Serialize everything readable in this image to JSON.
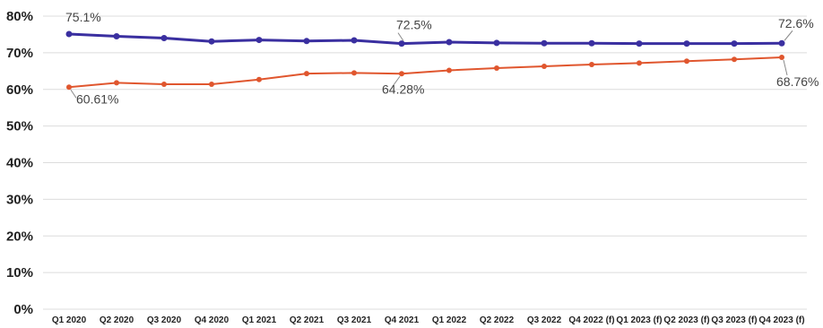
{
  "chart_data": {
    "type": "line",
    "categories": [
      "Q1 2020",
      "Q2 2020",
      "Q3 2020",
      "Q4 2020",
      "Q1 2021",
      "Q2 2021",
      "Q3 2021",
      "Q4 2021",
      "Q1 2022",
      "Q2 2022",
      "Q3 2022",
      "Q4 2022 (f)",
      "Q1 2023 (f)",
      "Q2 2023 (f)",
      "Q3 2023 (f)",
      "Q4 2023 (f)"
    ],
    "yticks": [
      "0%",
      "10%",
      "20%",
      "30%",
      "40%",
      "50%",
      "60%",
      "70%",
      "80%"
    ],
    "ylim": [
      0,
      80
    ],
    "grid": true,
    "series": [
      {
        "color": "#3a2fa0",
        "values": [
          75.1,
          74.5,
          74.0,
          73.1,
          73.5,
          73.2,
          73.4,
          72.5,
          72.9,
          72.7,
          72.6,
          72.6,
          72.5,
          72.5,
          72.5,
          72.6
        ]
      },
      {
        "color": "#e0562e",
        "values": [
          60.61,
          61.8,
          61.4,
          61.4,
          62.7,
          64.3,
          64.5,
          64.28,
          65.2,
          65.8,
          66.3,
          66.8,
          67.2,
          67.7,
          68.2,
          68.76
        ]
      }
    ],
    "annotations": [
      {
        "series": 0,
        "index": 0,
        "text": "75.1%"
      },
      {
        "series": 0,
        "index": 7,
        "text": "72.5%"
      },
      {
        "series": 0,
        "index": 15,
        "text": "72.6%"
      },
      {
        "series": 1,
        "index": 0,
        "text": "60.61%"
      },
      {
        "series": 1,
        "index": 7,
        "text": "64.28%"
      },
      {
        "series": 1,
        "index": 15,
        "text": "68.76%"
      }
    ]
  }
}
